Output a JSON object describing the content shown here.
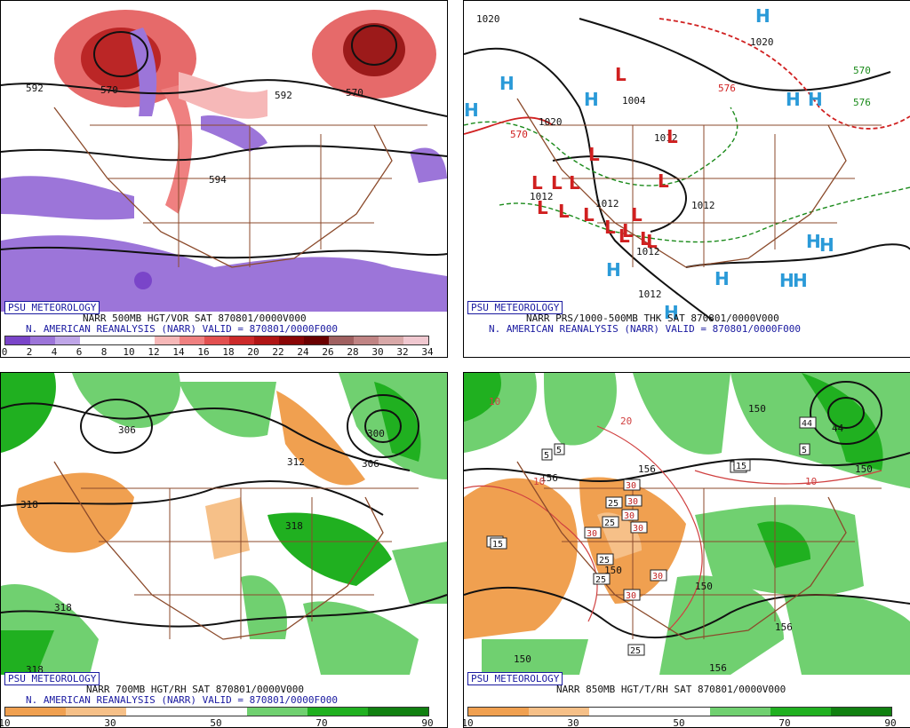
{
  "branding": "PSU METEOROLOGY",
  "panels": [
    {
      "product": "NARR 500MB HGT/VOR SAT 870801/0000V000",
      "valid": "N. AMERICAN REANALYSIS (NARR) VALID = 870801/0000F000",
      "contour_labels": [
        "592",
        "570",
        "592",
        "570",
        "594"
      ],
      "colorbar": {
        "colors": [
          "#7a45c9",
          "#9c75d9",
          "#bfa6e8",
          "#ffffff",
          "#ffffff",
          "#ffffff",
          "#f6b8b8",
          "#ef8080",
          "#e25050",
          "#cc2a2a",
          "#b01515",
          "#8a0606",
          "#6a0000",
          "#a06060",
          "#c08484",
          "#d8a8a8",
          "#f0c8d0"
        ],
        "labels": [
          "0",
          "2",
          "4",
          "6",
          "8",
          "10",
          "12",
          "14",
          "16",
          "18",
          "20",
          "22",
          "24",
          "26",
          "28",
          "30",
          "32",
          "34"
        ]
      }
    },
    {
      "product": "NARR PRS/1000-500MB THK SAT 870801/0000V000",
      "valid": "N. AMERICAN REANALYSIS (NARR) VALID = 870801/0000F000",
      "pressure_labels": [
        "1020",
        "1020",
        "1004",
        "1012",
        "1012",
        "1012",
        "1012",
        "1012",
        "1012",
        "1020"
      ],
      "thickness_labels": [
        "570",
        "576",
        "570",
        "576"
      ],
      "highs": [
        "H",
        "H",
        "H",
        "H",
        "H",
        "H",
        "H",
        "H",
        "H",
        "H",
        "H",
        "H",
        "H"
      ],
      "lows": [
        "L",
        "L",
        "L",
        "L",
        "L",
        "L",
        "L",
        "L",
        "L",
        "L",
        "L",
        "L",
        "L",
        "L",
        "L",
        "L"
      ]
    },
    {
      "product": "NARR 700MB HGT/RH SAT 870801/0000V000",
      "valid": "N. AMERICAN REANALYSIS (NARR) VALID = 870801/0000F000",
      "contour_labels": [
        "306",
        "300",
        "312",
        "306",
        "318",
        "318",
        "318",
        "318"
      ],
      "colorbar": {
        "colors": [
          "#f0a050",
          "#f6c088",
          "#ffffff",
          "#ffffff",
          "#70d070",
          "#20b020",
          "#108010"
        ],
        "labels": [
          "10",
          "30",
          "50",
          "70",
          "90"
        ]
      }
    },
    {
      "product": "NARR 850MB HGT/T/RH SAT 870801/0000V000",
      "valid": "",
      "contour_labels": [
        "156",
        "150",
        "150",
        "156",
        "156",
        "150",
        "150",
        "156",
        "150",
        "44",
        "10",
        "10",
        "10",
        "20"
      ],
      "temp_boxes": [
        "5",
        "5",
        "15",
        "30",
        "30",
        "30",
        "25",
        "25",
        "30",
        "30",
        "30",
        "25",
        "25",
        "30",
        "15",
        "25",
        "15",
        "5",
        "15",
        "44"
      ],
      "colorbar": {
        "colors": [
          "#f0a050",
          "#f6c088",
          "#ffffff",
          "#ffffff",
          "#70d070",
          "#20b020",
          "#108010"
        ],
        "labels": [
          "10",
          "30",
          "50",
          "70",
          "90"
        ]
      }
    }
  ]
}
